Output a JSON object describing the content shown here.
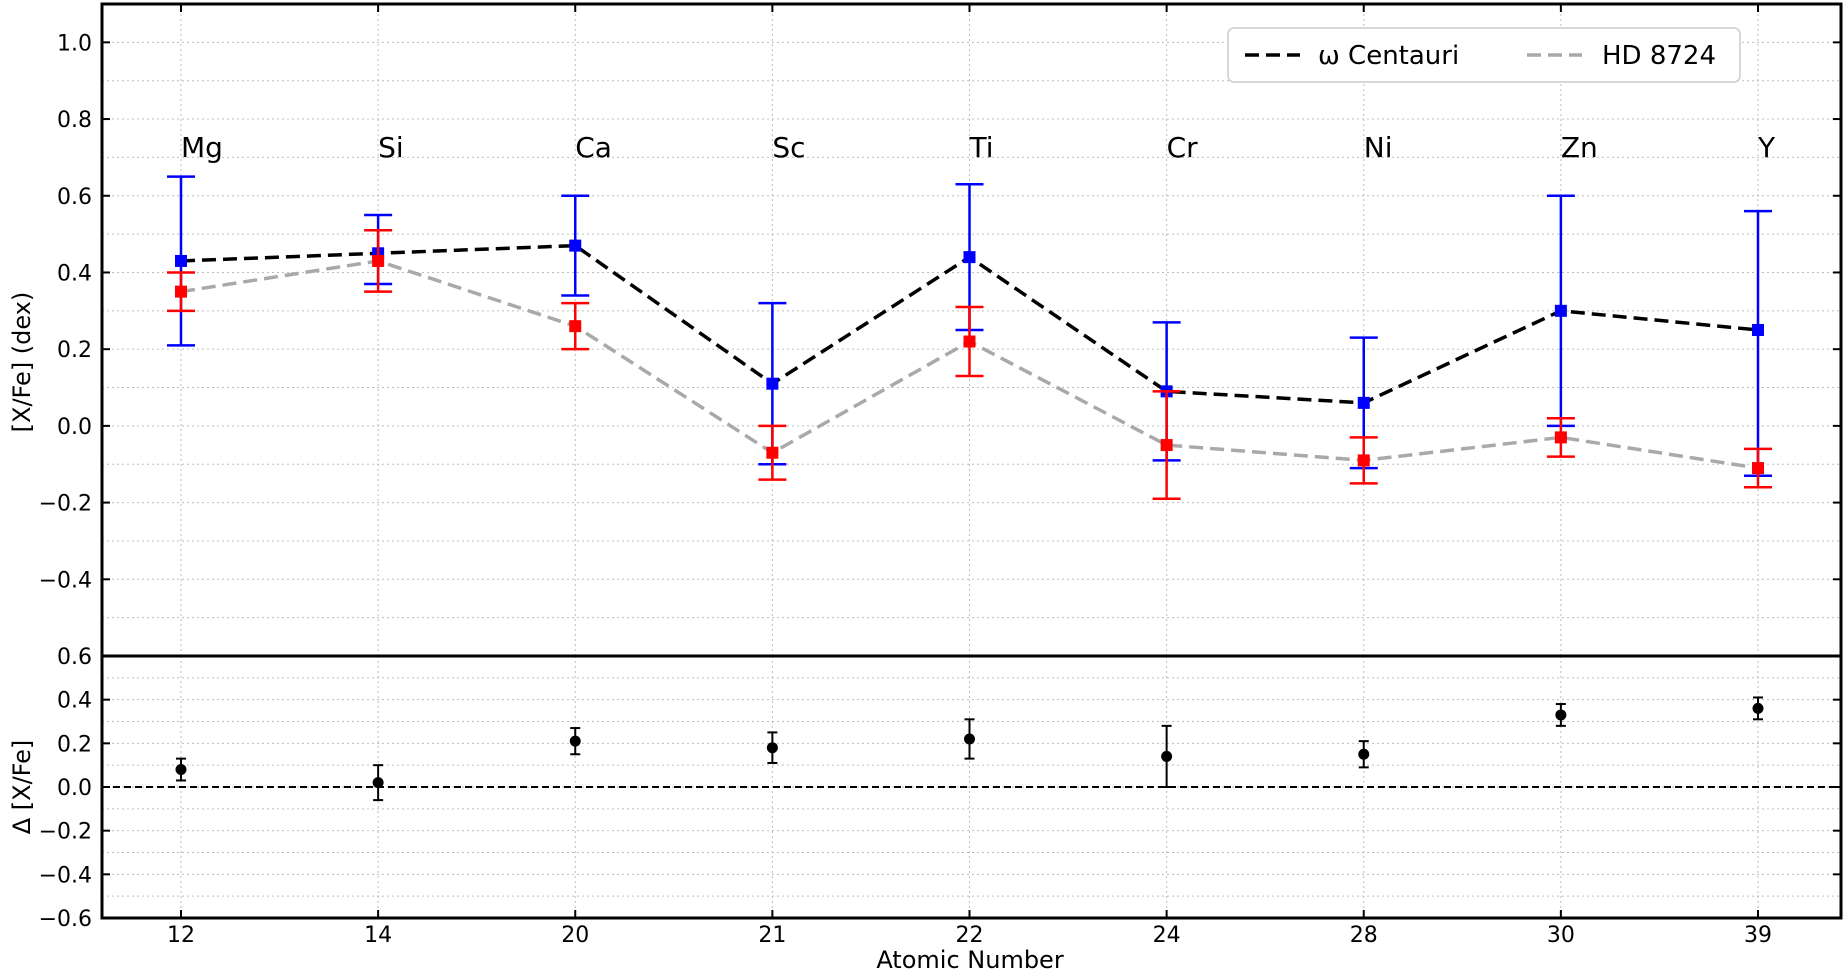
{
  "chart_data": [
    {
      "type": "line",
      "panel": "top",
      "xlabel": "",
      "ylabel": "[X/Fe] (dex)",
      "ylim": [
        -0.6,
        1.1
      ],
      "yticks": [
        1.0,
        0.8,
        0.6,
        0.4,
        0.2,
        0.0,
        -0.2,
        -0.4
      ],
      "ytick_labels": [
        "1.0",
        "0.8",
        "0.6",
        "0.4",
        "0.2",
        "0.0",
        "−0.2",
        "−0.4"
      ],
      "grid": true,
      "legend_position": "top-right",
      "categories": [
        "12",
        "14",
        "20",
        "21",
        "22",
        "24",
        "28",
        "30",
        "39"
      ],
      "element_labels": [
        "Mg",
        "Si",
        "Ca",
        "Sc",
        "Ti",
        "Cr",
        "Ni",
        "Zn",
        "Y"
      ],
      "series": [
        {
          "name": "ω Centauri",
          "line_color": "#000000",
          "marker_color": "#0000ff",
          "values": [
            0.43,
            0.45,
            0.47,
            0.11,
            0.44,
            0.09,
            0.06,
            0.3,
            0.25
          ],
          "err_low": [
            0.22,
            0.08,
            0.13,
            0.21,
            0.19,
            0.18,
            0.17,
            0.3,
            0.38
          ],
          "err_high": [
            0.22,
            0.1,
            0.13,
            0.21,
            0.19,
            0.18,
            0.17,
            0.3,
            0.31
          ]
        },
        {
          "name": "HD 8724",
          "line_color": "#a9a9a9",
          "marker_color": "#ff0000",
          "values": [
            0.35,
            0.43,
            0.26,
            -0.07,
            0.22,
            -0.05,
            -0.09,
            -0.03,
            -0.11
          ],
          "err_low": [
            0.05,
            0.08,
            0.06,
            0.07,
            0.09,
            0.14,
            0.06,
            0.05,
            0.05
          ],
          "err_high": [
            0.05,
            0.08,
            0.06,
            0.07,
            0.09,
            0.14,
            0.06,
            0.05,
            0.05
          ]
        }
      ]
    },
    {
      "type": "scatter",
      "panel": "bottom",
      "xlabel": "Atomic Number",
      "ylabel": "Δ [X/Fe]",
      "ylim": [
        -0.6,
        0.6
      ],
      "yticks": [
        0.6,
        0.4,
        0.2,
        0.0,
        -0.2,
        -0.4,
        -0.6
      ],
      "ytick_labels": [
        "0.6",
        "0.4",
        "0.2",
        "0.0",
        "−0.2",
        "−0.4",
        "−0.6"
      ],
      "grid": true,
      "reference_line": 0.0,
      "categories": [
        "12",
        "14",
        "20",
        "21",
        "22",
        "24",
        "28",
        "30",
        "39"
      ],
      "series": [
        {
          "marker_color": "#000000",
          "values": [
            0.08,
            0.02,
            0.21,
            0.18,
            0.22,
            0.14,
            0.15,
            0.33,
            0.36
          ],
          "err": [
            0.05,
            0.08,
            0.06,
            0.07,
            0.09,
            0.14,
            0.06,
            0.05,
            0.05
          ]
        }
      ]
    }
  ]
}
